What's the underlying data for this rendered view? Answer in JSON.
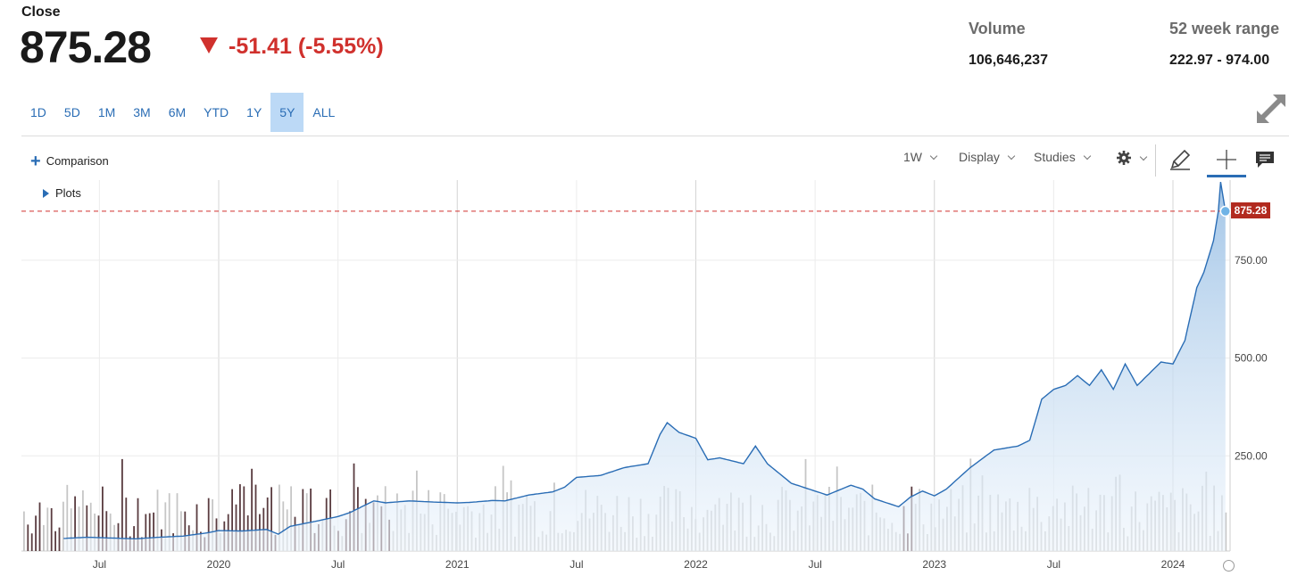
{
  "header": {
    "close_label": "Close",
    "price": "875.28",
    "change": "-51.41 (-5.55%)",
    "change_color": "#d0312d",
    "volume_label": "Volume",
    "volume_value": "106,646,237",
    "range_label": "52 week range",
    "range_value": "222.97 - 974.00"
  },
  "range_buttons": [
    "1D",
    "5D",
    "1M",
    "3M",
    "6M",
    "YTD",
    "1Y",
    "5Y",
    "ALL"
  ],
  "active_range": "5Y",
  "toolbar": {
    "comparison": "Comparison",
    "interval": "1W",
    "display": "Display",
    "studies": "Studies",
    "plots": "Plots"
  },
  "chart_data": {
    "type": "area",
    "x_ticks": [
      "Jul",
      "2020",
      "Jul",
      "2021",
      "Jul",
      "2022",
      "Jul",
      "2023",
      "Jul",
      "2024"
    ],
    "y_ticks": [
      "250.00",
      "500.00",
      "750.00"
    ],
    "ylim": [
      0,
      975
    ],
    "last_value": 875.28,
    "last_value_label": "875.28",
    "line_color": "#2a6db5",
    "reference_line_color": "#d0312d",
    "price_series": [
      [
        2019.35,
        39
      ],
      [
        2019.45,
        42
      ],
      [
        2019.55,
        40
      ],
      [
        2019.65,
        38
      ],
      [
        2019.75,
        42
      ],
      [
        2019.85,
        45
      ],
      [
        2019.95,
        53
      ],
      [
        2020.0,
        59
      ],
      [
        2020.1,
        58
      ],
      [
        2020.2,
        62
      ],
      [
        2020.25,
        50
      ],
      [
        2020.3,
        70
      ],
      [
        2020.4,
        82
      ],
      [
        2020.5,
        95
      ],
      [
        2020.55,
        105
      ],
      [
        2020.6,
        120
      ],
      [
        2020.65,
        135
      ],
      [
        2020.7,
        130
      ],
      [
        2020.8,
        135
      ],
      [
        2020.9,
        132
      ],
      [
        2021.0,
        130
      ],
      [
        2021.05,
        131
      ],
      [
        2021.15,
        136
      ],
      [
        2021.2,
        135
      ],
      [
        2021.3,
        150
      ],
      [
        2021.4,
        158
      ],
      [
        2021.45,
        170
      ],
      [
        2021.5,
        195
      ],
      [
        2021.6,
        200
      ],
      [
        2021.65,
        210
      ],
      [
        2021.7,
        220
      ],
      [
        2021.8,
        230
      ],
      [
        2021.85,
        305
      ],
      [
        2021.88,
        335
      ],
      [
        2021.93,
        310
      ],
      [
        2022.0,
        295
      ],
      [
        2022.05,
        240
      ],
      [
        2022.1,
        245
      ],
      [
        2022.2,
        230
      ],
      [
        2022.25,
        275
      ],
      [
        2022.3,
        230
      ],
      [
        2022.4,
        180
      ],
      [
        2022.5,
        160
      ],
      [
        2022.55,
        150
      ],
      [
        2022.65,
        175
      ],
      [
        2022.7,
        165
      ],
      [
        2022.75,
        140
      ],
      [
        2022.85,
        120
      ],
      [
        2022.9,
        145
      ],
      [
        2022.95,
        160
      ],
      [
        2023.0,
        148
      ],
      [
        2023.05,
        165
      ],
      [
        2023.15,
        220
      ],
      [
        2023.25,
        265
      ],
      [
        2023.35,
        275
      ],
      [
        2023.4,
        290
      ],
      [
        2023.45,
        395
      ],
      [
        2023.5,
        420
      ],
      [
        2023.55,
        430
      ],
      [
        2023.6,
        455
      ],
      [
        2023.65,
        430
      ],
      [
        2023.7,
        470
      ],
      [
        2023.75,
        420
      ],
      [
        2023.8,
        485
      ],
      [
        2023.85,
        430
      ],
      [
        2023.9,
        460
      ],
      [
        2023.95,
        490
      ],
      [
        2024.0,
        485
      ],
      [
        2024.05,
        545
      ],
      [
        2024.1,
        680
      ],
      [
        2024.13,
        720
      ],
      [
        2024.17,
        800
      ],
      [
        2024.19,
        875
      ],
      [
        2024.2,
        950
      ],
      [
        2024.22,
        875.28
      ]
    ]
  }
}
